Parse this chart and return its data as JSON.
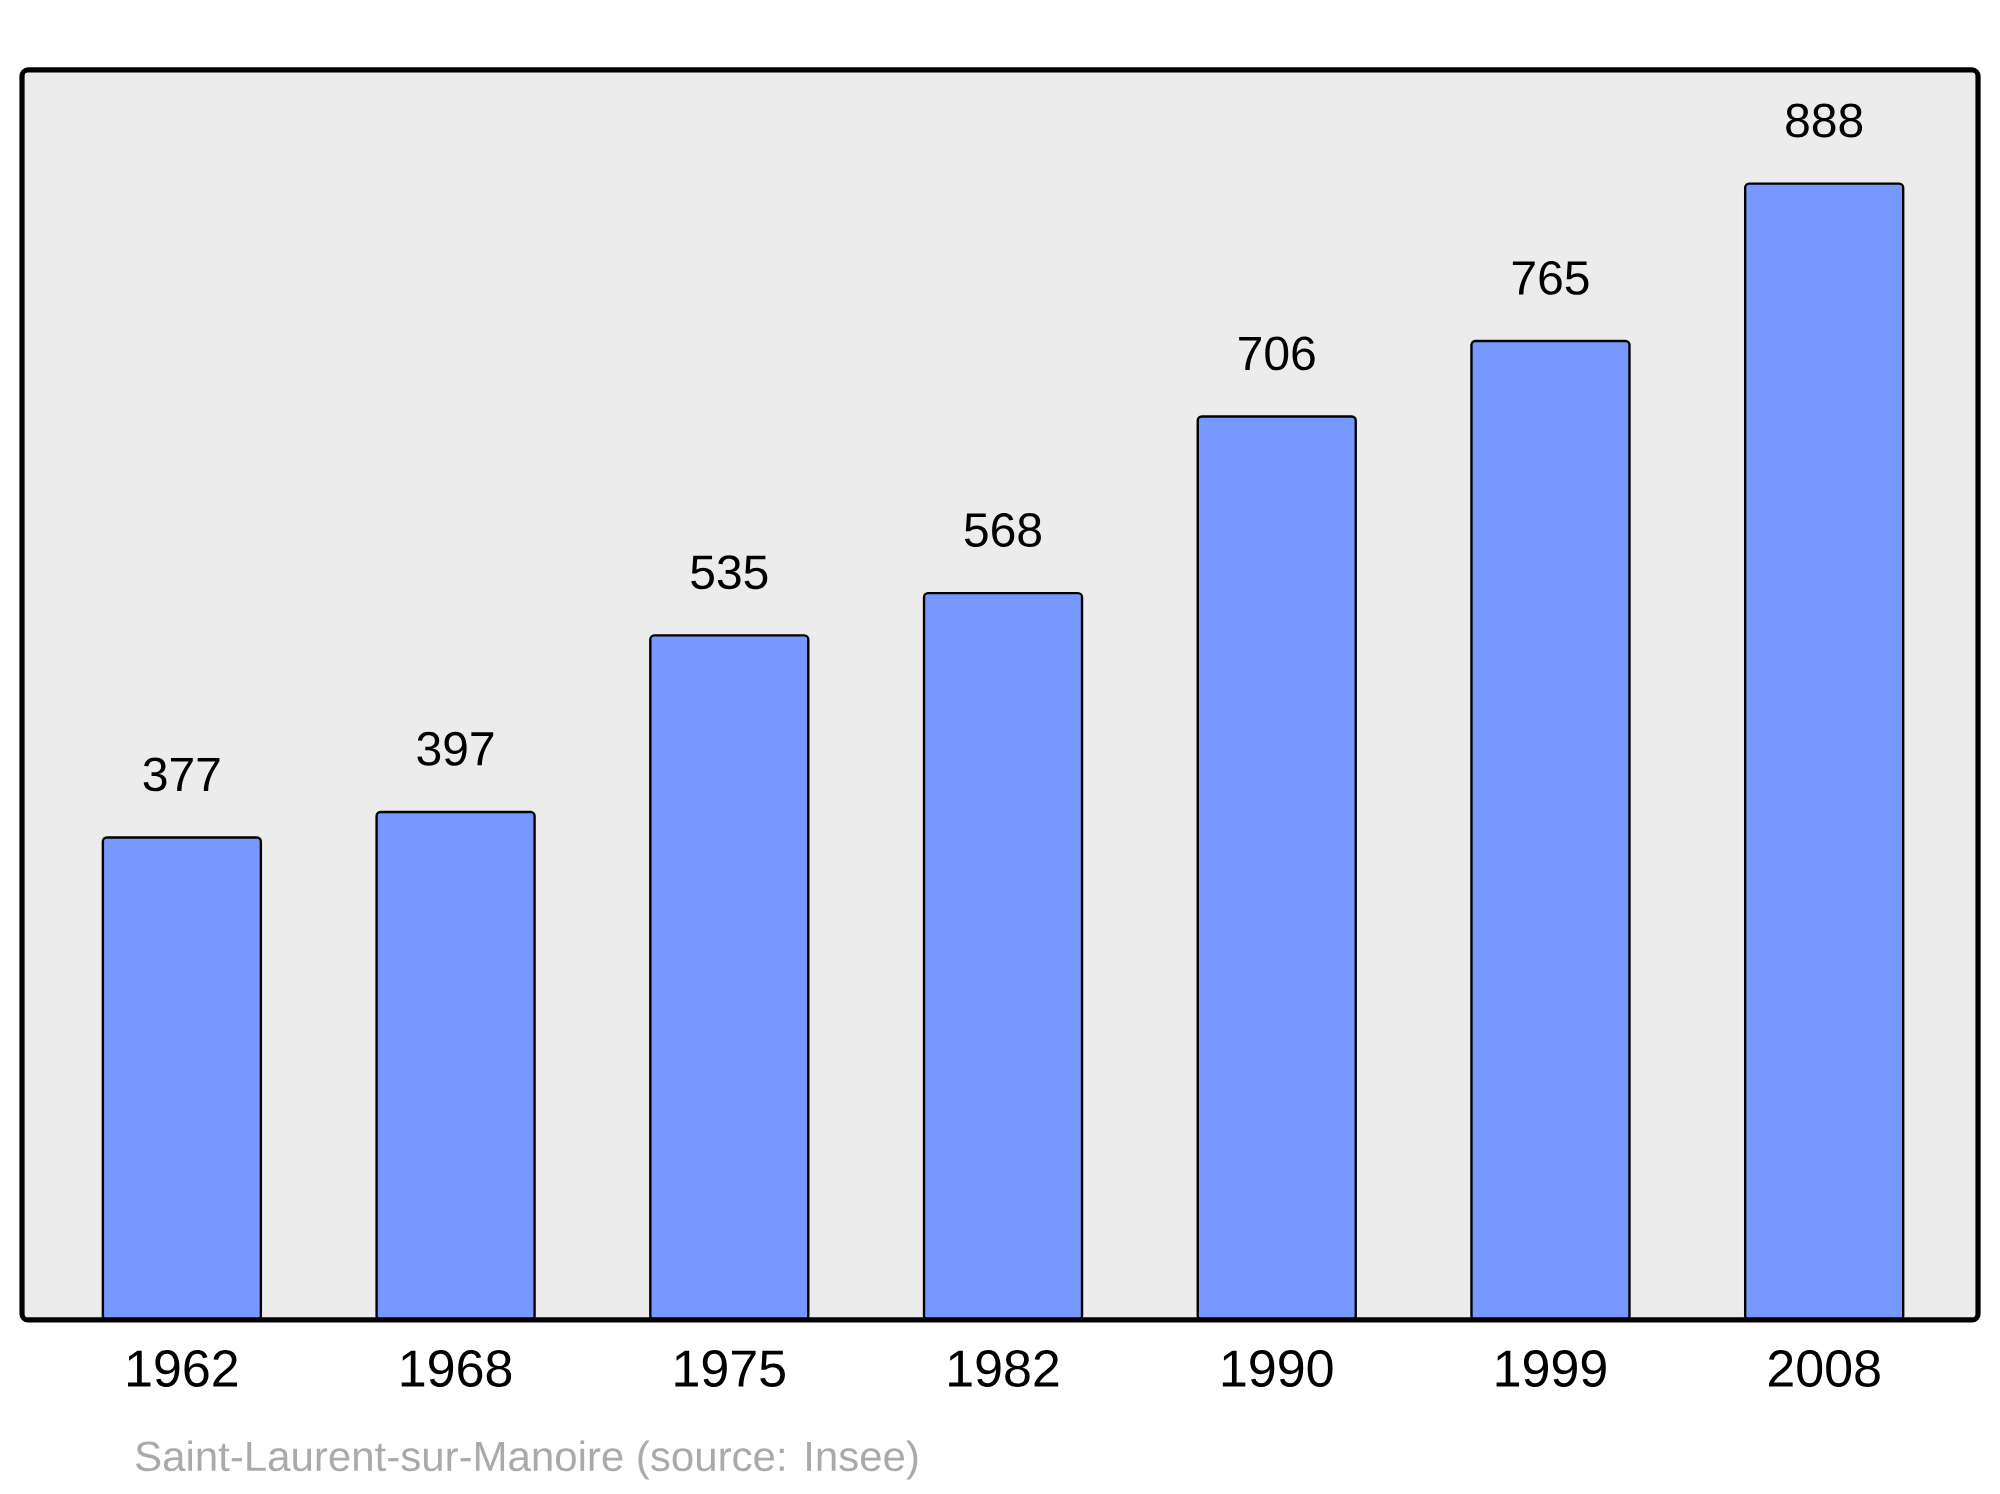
{
  "chart_data": {
    "type": "bar",
    "categories": [
      "1962",
      "1968",
      "1975",
      "1982",
      "1990",
      "1999",
      "2008"
    ],
    "values": [
      377,
      397,
      535,
      568,
      706,
      765,
      888
    ],
    "value_labels": [
      "377",
      "397",
      "535",
      "568",
      "706",
      "765",
      "888"
    ],
    "color": "#7799ff",
    "annotations": [
      "Saint-Laurent-sur-Manoire    (source: Insee)"
    ]
  }
}
